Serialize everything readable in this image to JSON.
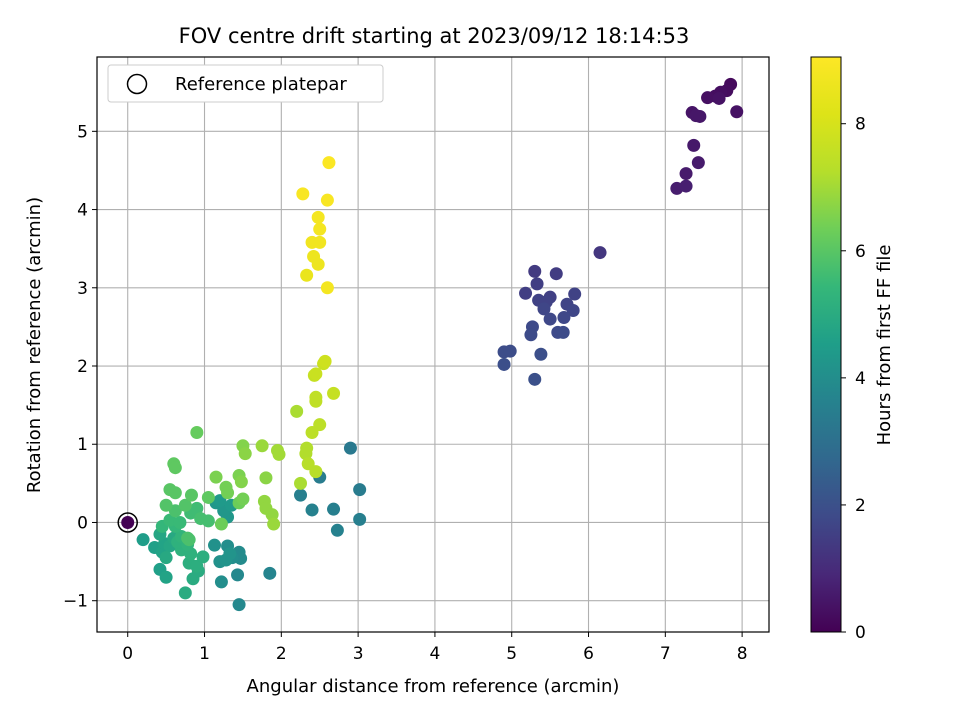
{
  "chart_data": {
    "type": "scatter",
    "title": "FOV centre drift starting at 2023/09/12 18:14:53",
    "xlabel": "Angular distance from reference (arcmin)",
    "ylabel": "Rotation from reference (arcmin)",
    "xlim": [
      -0.4,
      8.35
    ],
    "ylim": [
      -1.4,
      5.95
    ],
    "xticks": [
      0,
      1,
      2,
      3,
      4,
      5,
      6,
      7,
      8
    ],
    "yticks": [
      -1,
      0,
      1,
      2,
      3,
      4,
      5
    ],
    "xtick_labels": [
      "0",
      "1",
      "2",
      "3",
      "4",
      "5",
      "6",
      "7",
      "8"
    ],
    "ytick_labels": [
      "−1",
      "0",
      "1",
      "2",
      "3",
      "4",
      "5"
    ],
    "grid": true,
    "legend": {
      "position": "upper-left",
      "entries": [
        "Reference platepar"
      ]
    },
    "reference_point": {
      "x": 0,
      "y": 0
    },
    "colorbar": {
      "label": "Hours from first FF file",
      "range": [
        0,
        9.05
      ],
      "ticks": [
        0,
        2,
        4,
        6,
        8
      ],
      "tick_labels": [
        "0",
        "2",
        "4",
        "6",
        "8"
      ],
      "colormap": "viridis"
    },
    "points": [
      {
        "x": 0.0,
        "y": 0.0,
        "h": 0.0
      },
      {
        "x": 7.85,
        "y": 5.6,
        "h": 0.2
      },
      {
        "x": 7.8,
        "y": 5.52,
        "h": 0.25
      },
      {
        "x": 7.72,
        "y": 5.5,
        "h": 0.3
      },
      {
        "x": 7.65,
        "y": 5.45,
        "h": 0.3
      },
      {
        "x": 7.55,
        "y": 5.43,
        "h": 0.35
      },
      {
        "x": 7.7,
        "y": 5.42,
        "h": 0.4
      },
      {
        "x": 7.93,
        "y": 5.25,
        "h": 0.4
      },
      {
        "x": 7.35,
        "y": 5.24,
        "h": 0.45
      },
      {
        "x": 7.4,
        "y": 5.2,
        "h": 0.5
      },
      {
        "x": 7.45,
        "y": 5.19,
        "h": 0.5
      },
      {
        "x": 7.37,
        "y": 4.82,
        "h": 0.55
      },
      {
        "x": 7.43,
        "y": 4.6,
        "h": 0.6
      },
      {
        "x": 7.27,
        "y": 4.46,
        "h": 0.6
      },
      {
        "x": 7.15,
        "y": 4.27,
        "h": 0.65
      },
      {
        "x": 7.27,
        "y": 4.3,
        "h": 0.7
      },
      {
        "x": 6.15,
        "y": 3.45,
        "h": 1.3
      },
      {
        "x": 5.3,
        "y": 3.21,
        "h": 1.4
      },
      {
        "x": 5.58,
        "y": 3.18,
        "h": 1.45
      },
      {
        "x": 5.33,
        "y": 3.05,
        "h": 1.5
      },
      {
        "x": 5.18,
        "y": 2.93,
        "h": 1.5
      },
      {
        "x": 5.5,
        "y": 2.88,
        "h": 1.55
      },
      {
        "x": 5.82,
        "y": 2.92,
        "h": 1.6
      },
      {
        "x": 5.35,
        "y": 2.84,
        "h": 1.6
      },
      {
        "x": 5.45,
        "y": 2.82,
        "h": 1.6
      },
      {
        "x": 5.72,
        "y": 2.79,
        "h": 1.65
      },
      {
        "x": 5.42,
        "y": 2.73,
        "h": 1.7
      },
      {
        "x": 5.8,
        "y": 2.71,
        "h": 1.7
      },
      {
        "x": 5.68,
        "y": 2.62,
        "h": 1.75
      },
      {
        "x": 5.5,
        "y": 2.6,
        "h": 1.75
      },
      {
        "x": 5.27,
        "y": 2.5,
        "h": 1.8
      },
      {
        "x": 5.6,
        "y": 2.43,
        "h": 1.8
      },
      {
        "x": 5.67,
        "y": 2.43,
        "h": 1.85
      },
      {
        "x": 5.25,
        "y": 2.4,
        "h": 1.85
      },
      {
        "x": 4.9,
        "y": 2.18,
        "h": 1.9
      },
      {
        "x": 4.98,
        "y": 2.19,
        "h": 1.9
      },
      {
        "x": 5.38,
        "y": 2.15,
        "h": 1.95
      },
      {
        "x": 4.9,
        "y": 2.02,
        "h": 1.95
      },
      {
        "x": 5.3,
        "y": 1.83,
        "h": 2.0
      },
      {
        "x": 2.9,
        "y": 0.95,
        "h": 3.3
      },
      {
        "x": 2.5,
        "y": 0.58,
        "h": 3.4
      },
      {
        "x": 3.02,
        "y": 0.42,
        "h": 3.4
      },
      {
        "x": 2.25,
        "y": 0.35,
        "h": 3.5
      },
      {
        "x": 2.68,
        "y": 0.17,
        "h": 3.5
      },
      {
        "x": 3.02,
        "y": 0.04,
        "h": 3.5
      },
      {
        "x": 2.4,
        "y": 0.16,
        "h": 3.6
      },
      {
        "x": 2.73,
        "y": -0.1,
        "h": 3.6
      },
      {
        "x": 1.85,
        "y": -0.65,
        "h": 3.7
      },
      {
        "x": 1.45,
        "y": -1.05,
        "h": 3.8
      },
      {
        "x": 1.43,
        "y": -0.67,
        "h": 3.8
      },
      {
        "x": 1.47,
        "y": -0.46,
        "h": 3.9
      },
      {
        "x": 1.45,
        "y": -0.38,
        "h": 3.9
      },
      {
        "x": 1.36,
        "y": -0.45,
        "h": 4.0
      },
      {
        "x": 1.22,
        "y": -0.76,
        "h": 4.0
      },
      {
        "x": 1.3,
        "y": -0.3,
        "h": 4.0
      },
      {
        "x": 1.13,
        "y": -0.29,
        "h": 4.1
      },
      {
        "x": 1.2,
        "y": -0.5,
        "h": 4.1
      },
      {
        "x": 1.28,
        "y": -0.48,
        "h": 4.2
      },
      {
        "x": 1.33,
        "y": -0.4,
        "h": 4.2
      },
      {
        "x": 1.15,
        "y": 0.25,
        "h": 4.3
      },
      {
        "x": 1.3,
        "y": 0.07,
        "h": 4.3
      },
      {
        "x": 1.25,
        "y": 0.15,
        "h": 4.3
      },
      {
        "x": 1.35,
        "y": 0.22,
        "h": 4.4
      },
      {
        "x": 1.2,
        "y": 0.28,
        "h": 4.4
      },
      {
        "x": 0.2,
        "y": -0.22,
        "h": 4.5
      },
      {
        "x": 0.35,
        "y": -0.32,
        "h": 4.6
      },
      {
        "x": 0.42,
        "y": -0.6,
        "h": 4.6
      },
      {
        "x": 0.5,
        "y": -0.7,
        "h": 4.7
      },
      {
        "x": 0.45,
        "y": -0.38,
        "h": 4.7
      },
      {
        "x": 0.48,
        "y": -0.27,
        "h": 4.7
      },
      {
        "x": 0.42,
        "y": -0.15,
        "h": 4.8
      },
      {
        "x": 0.55,
        "y": -0.3,
        "h": 4.8
      },
      {
        "x": 0.6,
        "y": -0.2,
        "h": 4.9
      },
      {
        "x": 0.5,
        "y": -0.45,
        "h": 4.9
      },
      {
        "x": 0.75,
        "y": -0.9,
        "h": 5.0
      },
      {
        "x": 0.85,
        "y": -0.72,
        "h": 5.0
      },
      {
        "x": 0.92,
        "y": -0.62,
        "h": 5.0
      },
      {
        "x": 0.8,
        "y": -0.52,
        "h": 5.1
      },
      {
        "x": 0.9,
        "y": -0.56,
        "h": 5.1
      },
      {
        "x": 0.98,
        "y": -0.44,
        "h": 5.1
      },
      {
        "x": 0.7,
        "y": -0.35,
        "h": 5.2
      },
      {
        "x": 0.82,
        "y": -0.4,
        "h": 5.2
      },
      {
        "x": 0.65,
        "y": -0.25,
        "h": 5.2
      },
      {
        "x": 0.78,
        "y": -0.28,
        "h": 5.3
      },
      {
        "x": 0.7,
        "y": -0.18,
        "h": 5.3
      },
      {
        "x": 0.62,
        "y": -0.05,
        "h": 5.4
      },
      {
        "x": 0.45,
        "y": -0.05,
        "h": 5.4
      },
      {
        "x": 0.55,
        "y": 0.03,
        "h": 5.5
      },
      {
        "x": 0.68,
        "y": 0.0,
        "h": 5.5
      },
      {
        "x": 0.82,
        "y": 0.12,
        "h": 5.6
      },
      {
        "x": 0.9,
        "y": 0.18,
        "h": 5.6
      },
      {
        "x": 0.95,
        "y": 0.05,
        "h": 5.7
      },
      {
        "x": 1.05,
        "y": 0.02,
        "h": 5.7
      },
      {
        "x": 0.78,
        "y": -0.2,
        "h": 5.8
      },
      {
        "x": 0.8,
        "y": -0.22,
        "h": 5.8
      },
      {
        "x": 0.62,
        "y": 0.15,
        "h": 5.8
      },
      {
        "x": 0.75,
        "y": 0.22,
        "h": 5.9
      },
      {
        "x": 0.5,
        "y": 0.22,
        "h": 5.9
      },
      {
        "x": 0.55,
        "y": 0.42,
        "h": 6.0
      },
      {
        "x": 0.62,
        "y": 0.38,
        "h": 6.0
      },
      {
        "x": 0.83,
        "y": 0.35,
        "h": 6.0
      },
      {
        "x": 1.05,
        "y": 0.32,
        "h": 6.1
      },
      {
        "x": 0.6,
        "y": 0.75,
        "h": 6.1
      },
      {
        "x": 0.62,
        "y": 0.7,
        "h": 6.1
      },
      {
        "x": 0.9,
        "y": 1.15,
        "h": 6.2
      },
      {
        "x": 1.22,
        "y": -0.02,
        "h": 6.3
      },
      {
        "x": 1.45,
        "y": 0.25,
        "h": 6.3
      },
      {
        "x": 1.5,
        "y": 0.3,
        "h": 6.4
      },
      {
        "x": 1.28,
        "y": 0.45,
        "h": 6.4
      },
      {
        "x": 1.3,
        "y": 0.38,
        "h": 6.4
      },
      {
        "x": 1.15,
        "y": 0.58,
        "h": 6.5
      },
      {
        "x": 1.45,
        "y": 0.6,
        "h": 6.5
      },
      {
        "x": 1.48,
        "y": 0.52,
        "h": 6.6
      },
      {
        "x": 1.5,
        "y": 0.98,
        "h": 6.6
      },
      {
        "x": 1.53,
        "y": 0.88,
        "h": 6.7
      },
      {
        "x": 1.8,
        "y": 0.57,
        "h": 6.7
      },
      {
        "x": 1.78,
        "y": 0.27,
        "h": 6.8
      },
      {
        "x": 1.8,
        "y": 0.18,
        "h": 6.8
      },
      {
        "x": 1.88,
        "y": 0.1,
        "h": 6.8
      },
      {
        "x": 1.9,
        "y": -0.02,
        "h": 6.9
      },
      {
        "x": 1.75,
        "y": 0.98,
        "h": 6.9
      },
      {
        "x": 1.95,
        "y": 0.92,
        "h": 7.0
      },
      {
        "x": 1.97,
        "y": 0.87,
        "h": 7.0
      },
      {
        "x": 2.2,
        "y": 1.42,
        "h": 7.1
      },
      {
        "x": 2.25,
        "y": 0.5,
        "h": 7.1
      },
      {
        "x": 2.33,
        "y": 0.95,
        "h": 7.2
      },
      {
        "x": 2.32,
        "y": 0.88,
        "h": 7.2
      },
      {
        "x": 2.35,
        "y": 0.75,
        "h": 7.3
      },
      {
        "x": 2.45,
        "y": 0.65,
        "h": 7.3
      },
      {
        "x": 2.4,
        "y": 1.15,
        "h": 7.4
      },
      {
        "x": 2.5,
        "y": 1.25,
        "h": 7.4
      },
      {
        "x": 2.45,
        "y": 1.55,
        "h": 7.5
      },
      {
        "x": 2.45,
        "y": 1.6,
        "h": 7.5
      },
      {
        "x": 2.68,
        "y": 1.65,
        "h": 7.6
      },
      {
        "x": 2.43,
        "y": 1.88,
        "h": 7.6
      },
      {
        "x": 2.45,
        "y": 1.9,
        "h": 7.7
      },
      {
        "x": 2.55,
        "y": 2.03,
        "h": 7.7
      },
      {
        "x": 2.57,
        "y": 2.06,
        "h": 7.8
      },
      {
        "x": 2.28,
        "y": 4.2,
        "h": 8.9
      },
      {
        "x": 2.62,
        "y": 4.6,
        "h": 9.0
      },
      {
        "x": 2.6,
        "y": 4.12,
        "h": 8.9
      },
      {
        "x": 2.48,
        "y": 3.9,
        "h": 8.8
      },
      {
        "x": 2.5,
        "y": 3.75,
        "h": 8.8
      },
      {
        "x": 2.4,
        "y": 3.58,
        "h": 8.7
      },
      {
        "x": 2.5,
        "y": 3.58,
        "h": 8.7
      },
      {
        "x": 2.42,
        "y": 3.4,
        "h": 8.6
      },
      {
        "x": 2.48,
        "y": 3.3,
        "h": 8.6
      },
      {
        "x": 2.33,
        "y": 3.16,
        "h": 8.5
      },
      {
        "x": 2.6,
        "y": 3.0,
        "h": 8.8
      }
    ]
  }
}
